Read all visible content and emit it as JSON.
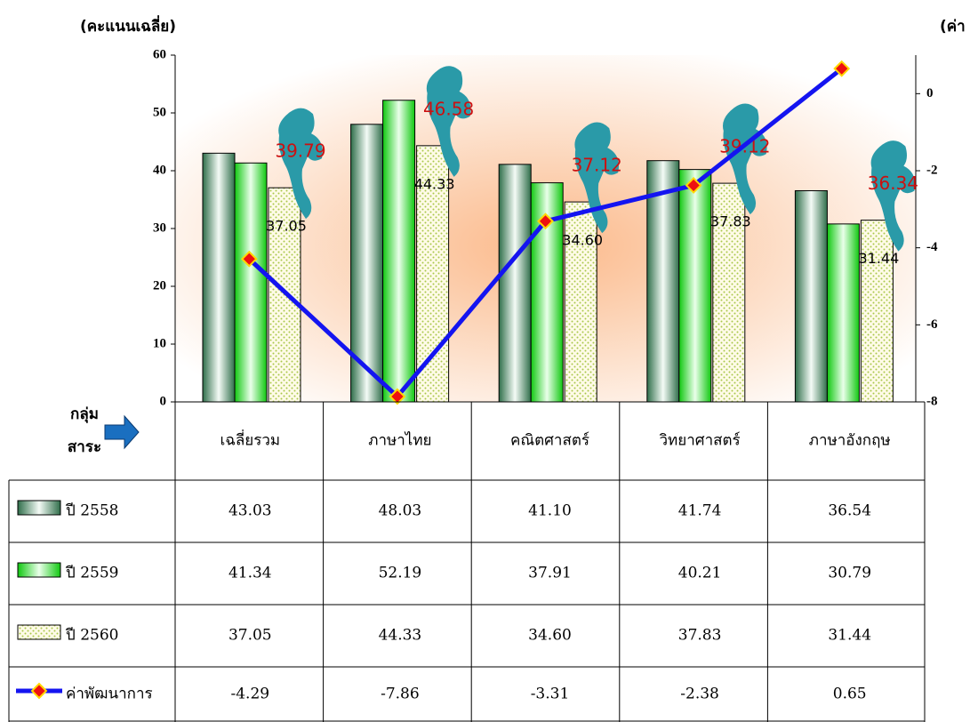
{
  "chart_data": {
    "type": "bar",
    "y_axis_label": "(คะแนนเฉลี่ย)",
    "y2_axis_label": "(ค่า",
    "table_corner": [
      "กลุ่ม",
      "สาระ"
    ],
    "categories": [
      "เฉลี่ยรวม",
      "ภาษาไทย",
      "คณิตศาสตร์",
      "วิทยาศาสตร์",
      "ภาษาอังกฤษ"
    ],
    "series": [
      {
        "name": "ปี 2558",
        "color": "#3f8a5e",
        "values": [
          43.03,
          48.03,
          41.1,
          41.74,
          36.54
        ],
        "value_labels": [
          "43.03",
          "48.03",
          "41.10",
          "41.74",
          "36.54"
        ]
      },
      {
        "name": "ปี 2559",
        "color": "#22e022",
        "values": [
          41.34,
          52.19,
          37.91,
          40.21,
          30.79
        ],
        "value_labels": [
          "41.34",
          "52.19",
          "37.91",
          "40.21",
          "30.79"
        ]
      },
      {
        "name": "ปี 2560",
        "color": "#a8c84a",
        "values": [
          37.05,
          44.33,
          34.6,
          37.83,
          31.44
        ],
        "value_labels": [
          "37.05",
          "44.33",
          "34.60",
          "37.83",
          "31.44"
        ],
        "data_labels": true
      },
      {
        "name": "ค่าพัฒนาการ",
        "type": "line",
        "axis": "y2",
        "color": "#1414f0",
        "values": [
          -4.29,
          -7.86,
          -3.31,
          -2.38,
          0.65
        ],
        "value_labels": [
          "-4.29",
          "-7.86",
          "-3.31",
          "-2.38",
          "0.65"
        ]
      }
    ],
    "annotations": [
      "39.79",
      "46.58",
      "37.12",
      "39.12",
      "36.34"
    ],
    "ylim": [
      0,
      60
    ],
    "yticks": [
      0,
      10,
      20,
      30,
      40,
      50,
      60
    ],
    "y2lim": [
      -8,
      1
    ],
    "y2ticks": [
      -8,
      -6,
      -4,
      -2,
      0
    ]
  }
}
